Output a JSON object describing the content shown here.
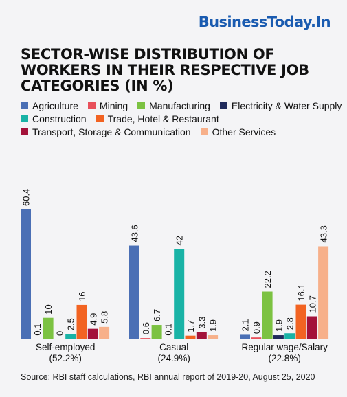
{
  "brand": {
    "logo_text": "BusinessToday.In"
  },
  "title": "SECTOR-WISE DISTRIBUTION OF WORKERS IN THEIR RESPECTIVE JOB CATEGORIES (IN %)",
  "source": "Source: RBI staff calculations, RBI annual report of 2019-20, August 25, 2020",
  "chart_data": {
    "type": "bar",
    "title": "SECTOR-WISE DISTRIBUTION OF WORKERS IN THEIR RESPECTIVE JOB CATEGORIES (IN %)",
    "xlabel": "",
    "ylabel": "",
    "ylim": [
      0,
      62
    ],
    "grid": false,
    "legend_position": "top",
    "categories": [
      [
        "Self-employed",
        "(52.2%)"
      ],
      [
        "Casual",
        "(24.9%)"
      ],
      [
        "Regular wage/Salary",
        "(22.8%)"
      ]
    ],
    "series": [
      {
        "name": "Agriculture",
        "color": "#4a6fb5",
        "values": [
          60.4,
          43.6,
          2.1
        ]
      },
      {
        "name": "Mining",
        "color": "#e8505b",
        "values": [
          0.1,
          0.6,
          0.9
        ]
      },
      {
        "name": "Manufacturing",
        "color": "#7cc242",
        "values": [
          10,
          6.7,
          22.2
        ]
      },
      {
        "name": "Electricity & Water Supply",
        "color": "#1f2a5c",
        "values": [
          0,
          0.1,
          1.9
        ]
      },
      {
        "name": "Construction",
        "color": "#19b3a6",
        "values": [
          2.5,
          42,
          2.8
        ]
      },
      {
        "name": "Trade, Hotel & Restaurant",
        "color": "#f26322",
        "values": [
          16,
          1.7,
          16.1
        ]
      },
      {
        "name": "Transport, Storage & Communication",
        "color": "#a3123a",
        "values": [
          4.9,
          3.3,
          10.7
        ]
      },
      {
        "name": "Other Services",
        "color": "#f7b08a",
        "values": [
          5.8,
          1.9,
          43.3
        ]
      }
    ],
    "data_labels": [
      [
        "60.4",
        "43.6",
        "2.1"
      ],
      [
        "0.1",
        "0.6",
        "0.9"
      ],
      [
        "10",
        "6.7",
        "22.2"
      ],
      [
        "0",
        "0.1",
        "1.9"
      ],
      [
        "2.5",
        "42",
        "2.8"
      ],
      [
        "16",
        "1.7",
        "16.1"
      ],
      [
        "4.9",
        "3.3",
        "10.7"
      ],
      [
        "5.8",
        "1.9",
        "43.3"
      ]
    ]
  }
}
